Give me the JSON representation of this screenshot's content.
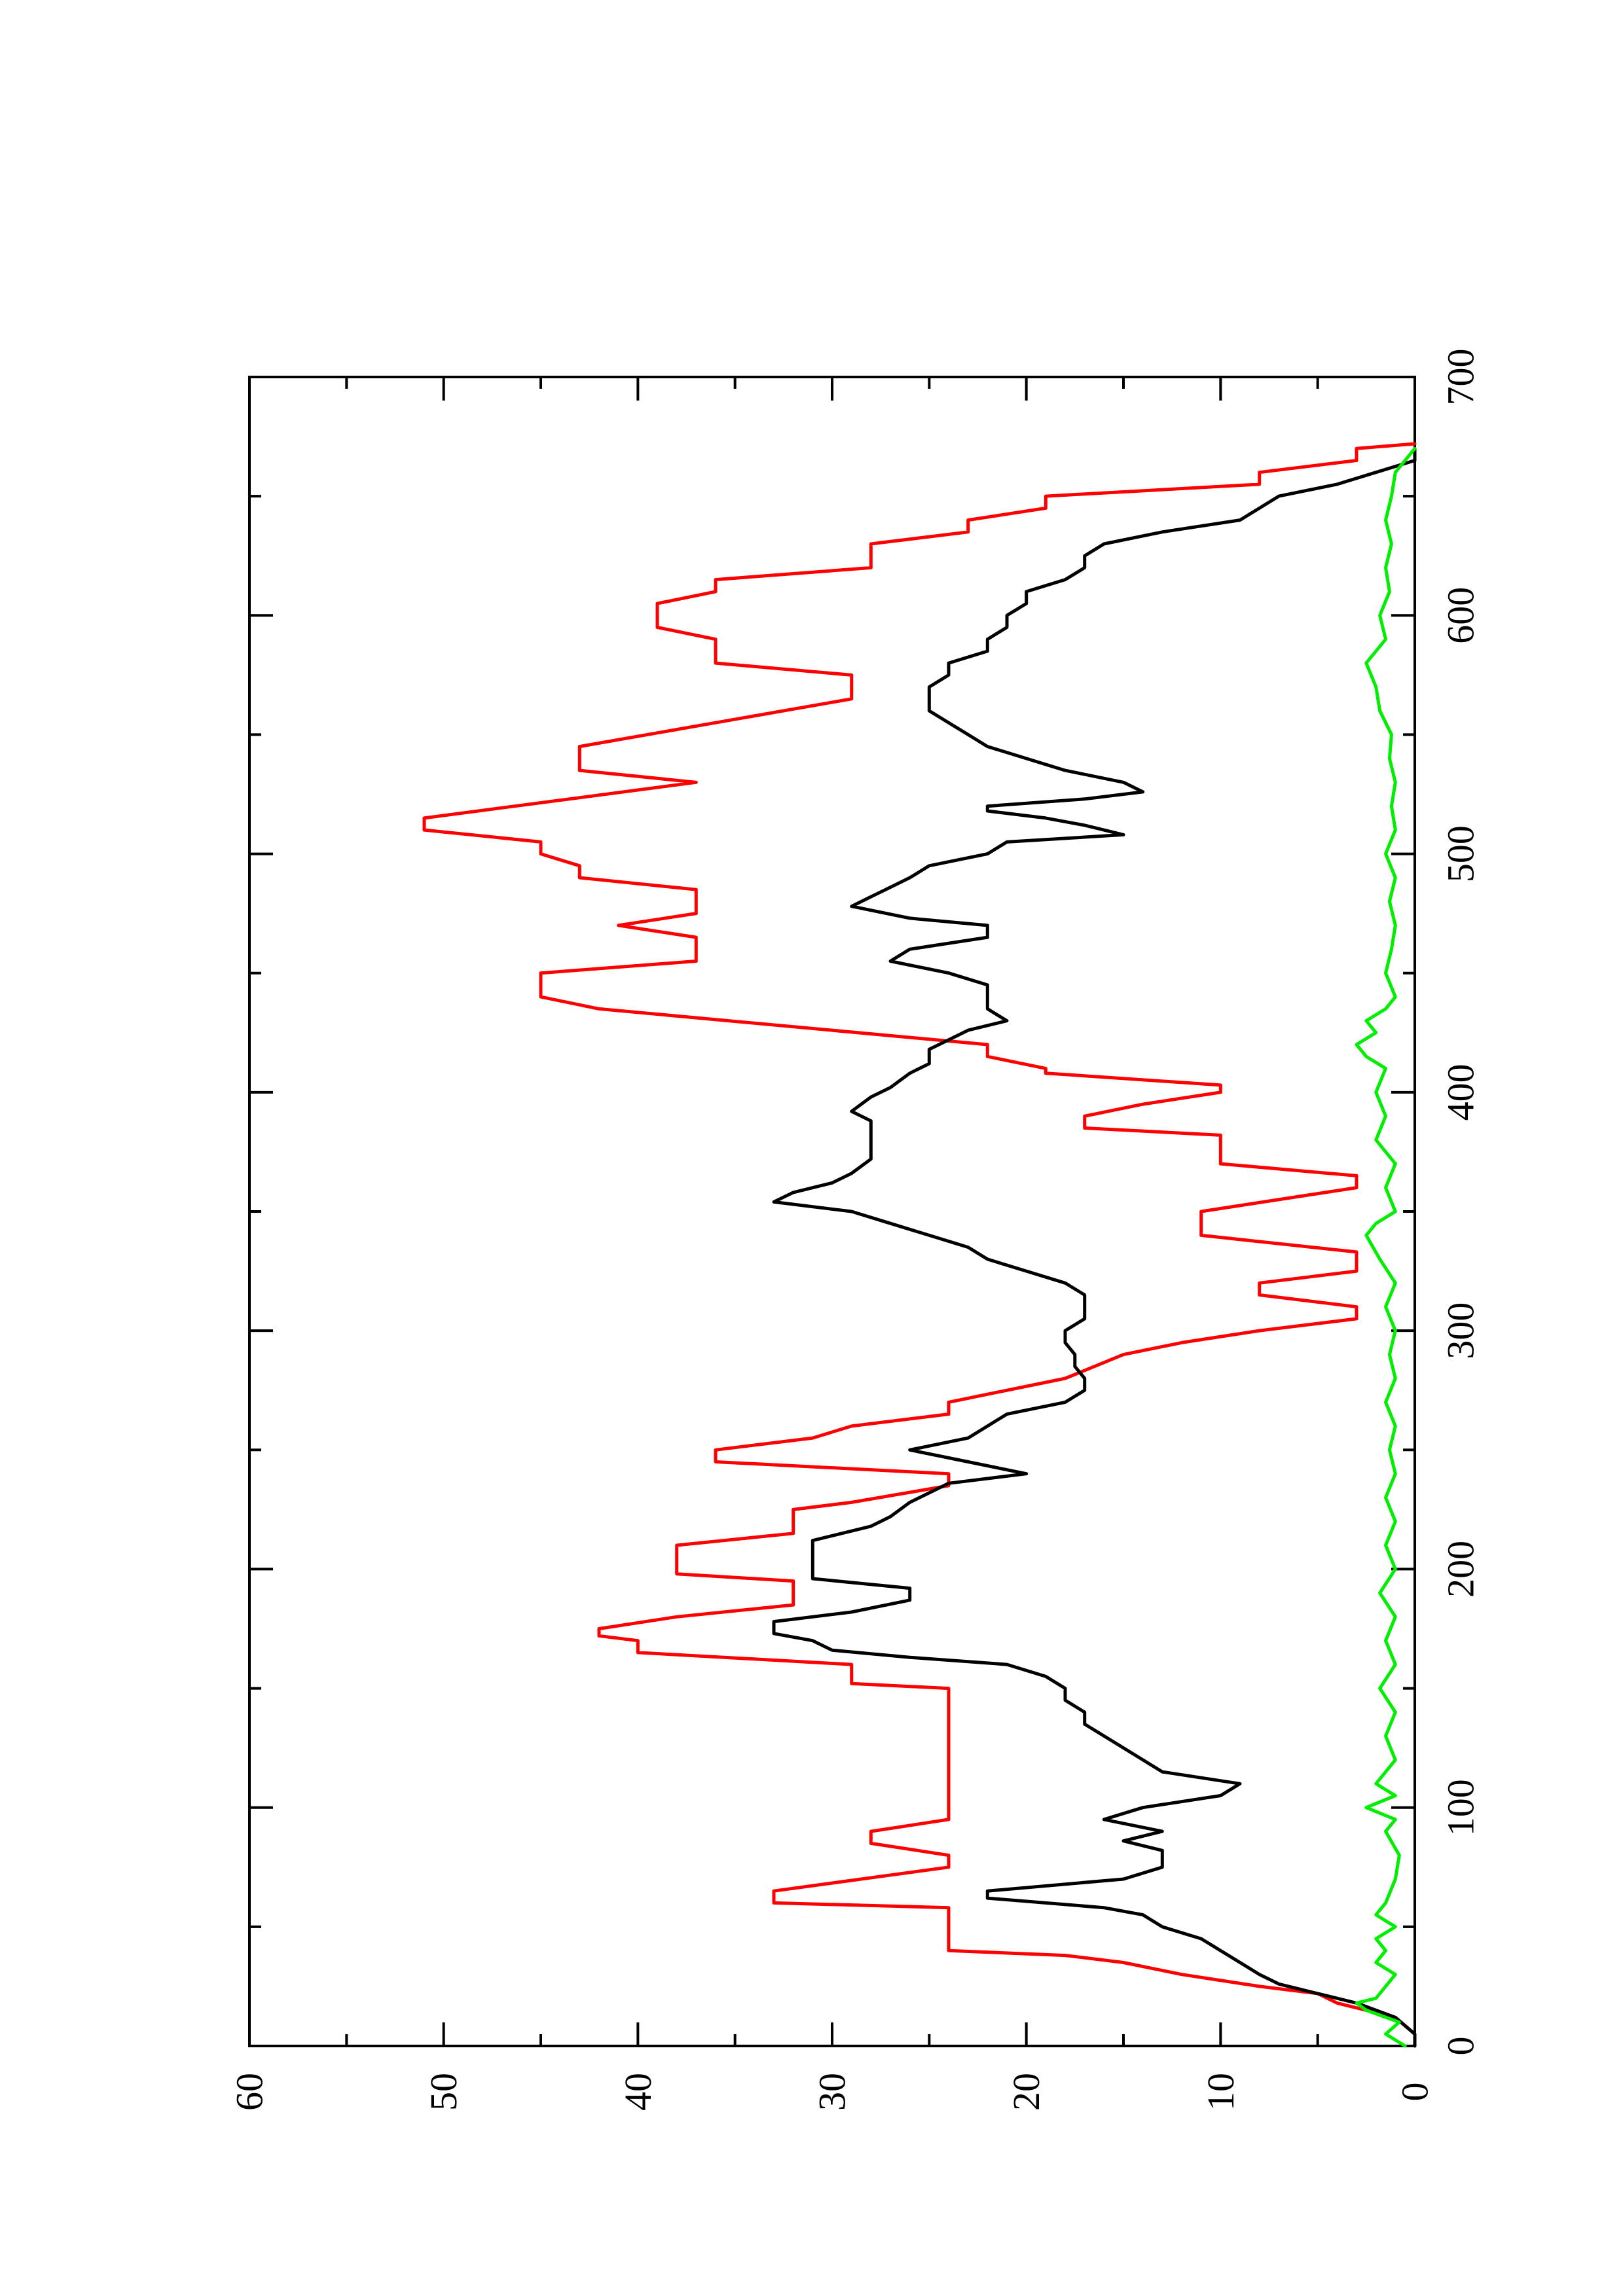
{
  "chart_data": {
    "type": "line",
    "orientation": "rotated-90-ccw",
    "title": "",
    "xlabel": "",
    "ylabel": "",
    "xlim": [
      0,
      700
    ],
    "ylim": [
      0,
      60
    ],
    "x_ticks": [
      0,
      100,
      200,
      300,
      400,
      500,
      600,
      700
    ],
    "x_minor_ticks": [
      50,
      150,
      250,
      350,
      450,
      550,
      650
    ],
    "y_ticks": [
      0,
      10,
      20,
      30,
      40,
      50,
      60
    ],
    "y_minor_ticks": [
      5,
      15,
      25,
      35,
      45,
      55
    ],
    "x_tick_labels": [
      "0",
      "100",
      "200",
      "300",
      "400",
      "500",
      "600",
      "700"
    ],
    "y_tick_labels": [
      "0",
      "10",
      "20",
      "30",
      "40",
      "50",
      "60"
    ],
    "grid": false,
    "legend": "none",
    "series": [
      {
        "color": "#ff0000",
        "points": [
          [
            0,
            0
          ],
          [
            5,
            0
          ],
          [
            12,
            1
          ],
          [
            18,
            4
          ],
          [
            22,
            5
          ],
          [
            25,
            8
          ],
          [
            30,
            12
          ],
          [
            35,
            15
          ],
          [
            38,
            18
          ],
          [
            40,
            24
          ],
          [
            58,
            24
          ],
          [
            60,
            33
          ],
          [
            65,
            33
          ],
          [
            75,
            24
          ],
          [
            80,
            24
          ],
          [
            85,
            28
          ],
          [
            90,
            28
          ],
          [
            95,
            24
          ],
          [
            150,
            24
          ],
          [
            152,
            29
          ],
          [
            160,
            29
          ],
          [
            165,
            40
          ],
          [
            170,
            40
          ],
          [
            172,
            42
          ],
          [
            175,
            42
          ],
          [
            180,
            38
          ],
          [
            185,
            32
          ],
          [
            195,
            32
          ],
          [
            198,
            38
          ],
          [
            210,
            38
          ],
          [
            215,
            32
          ],
          [
            225,
            32
          ],
          [
            228,
            29
          ],
          [
            235,
            24
          ],
          [
            240,
            24
          ],
          [
            245,
            36
          ],
          [
            250,
            36
          ],
          [
            255,
            31
          ],
          [
            260,
            29
          ],
          [
            265,
            24
          ],
          [
            270,
            24
          ],
          [
            280,
            18
          ],
          [
            290,
            15
          ],
          [
            295,
            12
          ],
          [
            300,
            8
          ],
          [
            305,
            3
          ],
          [
            310,
            3
          ],
          [
            315,
            8
          ],
          [
            320,
            8
          ],
          [
            325,
            3
          ],
          [
            333,
            3
          ],
          [
            340,
            11
          ],
          [
            350,
            11
          ],
          [
            360,
            3
          ],
          [
            365,
            3
          ],
          [
            370,
            10
          ],
          [
            382,
            10
          ],
          [
            385,
            17
          ],
          [
            390,
            17
          ],
          [
            395,
            14
          ],
          [
            400,
            10
          ],
          [
            403,
            10
          ],
          [
            408,
            19
          ],
          [
            410,
            19
          ],
          [
            415,
            22
          ],
          [
            420,
            22
          ],
          [
            435,
            42
          ],
          [
            440,
            45
          ],
          [
            450,
            45
          ],
          [
            455,
            37
          ],
          [
            465,
            37
          ],
          [
            470,
            41
          ],
          [
            475,
            37
          ],
          [
            485,
            37
          ],
          [
            490,
            43
          ],
          [
            495,
            43
          ],
          [
            500,
            45
          ],
          [
            505,
            45
          ],
          [
            510,
            51
          ],
          [
            515,
            51
          ],
          [
            530,
            37
          ],
          [
            535,
            43
          ],
          [
            545,
            43
          ],
          [
            555,
            36
          ],
          [
            565,
            29
          ],
          [
            575,
            29
          ],
          [
            580,
            36
          ],
          [
            590,
            36
          ],
          [
            595,
            39
          ],
          [
            605,
            39
          ],
          [
            610,
            36
          ],
          [
            615,
            36
          ],
          [
            620,
            28
          ],
          [
            630,
            28
          ],
          [
            635,
            23
          ],
          [
            640,
            23
          ],
          [
            645,
            19
          ],
          [
            650,
            19
          ],
          [
            655,
            8
          ],
          [
            660,
            8
          ],
          [
            665,
            3
          ],
          [
            670,
            3
          ],
          [
            672,
            0
          ]
        ]
      },
      {
        "color": "#000000",
        "points": [
          [
            0,
            0
          ],
          [
            5,
            0
          ],
          [
            12,
            1
          ],
          [
            18,
            3
          ],
          [
            22,
            5
          ],
          [
            26,
            7
          ],
          [
            30,
            8
          ],
          [
            35,
            9
          ],
          [
            40,
            10
          ],
          [
            45,
            11
          ],
          [
            50,
            13
          ],
          [
            55,
            14
          ],
          [
            58,
            16
          ],
          [
            62,
            22
          ],
          [
            65,
            22
          ],
          [
            70,
            15
          ],
          [
            75,
            13
          ],
          [
            82,
            13
          ],
          [
            86,
            15
          ],
          [
            90,
            13
          ],
          [
            95,
            16
          ],
          [
            100,
            14
          ],
          [
            105,
            10
          ],
          [
            110,
            9
          ],
          [
            115,
            13
          ],
          [
            120,
            14
          ],
          [
            125,
            15
          ],
          [
            130,
            16
          ],
          [
            135,
            17
          ],
          [
            140,
            17
          ],
          [
            145,
            18
          ],
          [
            150,
            18
          ],
          [
            155,
            19
          ],
          [
            160,
            21
          ],
          [
            163,
            26
          ],
          [
            166,
            30
          ],
          [
            170,
            31
          ],
          [
            173,
            33
          ],
          [
            178,
            33
          ],
          [
            182,
            29
          ],
          [
            187,
            26
          ],
          [
            192,
            26
          ],
          [
            196,
            31
          ],
          [
            205,
            31
          ],
          [
            212,
            31
          ],
          [
            218,
            28
          ],
          [
            222,
            27
          ],
          [
            228,
            26
          ],
          [
            232,
            25
          ],
          [
            236,
            24
          ],
          [
            240,
            20
          ],
          [
            245,
            23
          ],
          [
            250,
            26
          ],
          [
            255,
            23
          ],
          [
            260,
            22
          ],
          [
            265,
            21
          ],
          [
            270,
            18
          ],
          [
            275,
            17
          ],
          [
            280,
            17
          ],
          [
            285,
            17.5
          ],
          [
            290,
            17.5
          ],
          [
            295,
            18
          ],
          [
            300,
            18
          ],
          [
            305,
            17
          ],
          [
            310,
            17
          ],
          [
            315,
            17
          ],
          [
            320,
            18
          ],
          [
            325,
            20
          ],
          [
            330,
            22
          ],
          [
            335,
            23
          ],
          [
            340,
            25
          ],
          [
            345,
            27
          ],
          [
            350,
            29
          ],
          [
            354,
            33
          ],
          [
            358,
            32
          ],
          [
            362,
            30
          ],
          [
            366,
            29
          ],
          [
            372,
            28
          ],
          [
            378,
            28
          ],
          [
            382,
            28
          ],
          [
            388,
            28
          ],
          [
            392,
            29
          ],
          [
            398,
            28
          ],
          [
            402,
            27
          ],
          [
            408,
            26
          ],
          [
            412,
            25
          ],
          [
            418,
            25
          ],
          [
            422,
            24
          ],
          [
            426,
            23
          ],
          [
            430,
            21
          ],
          [
            435,
            22
          ],
          [
            440,
            22
          ],
          [
            445,
            22
          ],
          [
            450,
            24
          ],
          [
            455,
            27
          ],
          [
            460,
            26
          ],
          [
            465,
            22
          ],
          [
            470,
            22
          ],
          [
            473,
            26
          ],
          [
            478,
            29
          ],
          [
            482,
            28
          ],
          [
            486,
            27
          ],
          [
            490,
            26
          ],
          [
            495,
            25
          ],
          [
            500,
            22
          ],
          [
            505,
            21
          ],
          [
            508,
            15
          ],
          [
            512,
            17
          ],
          [
            515,
            19
          ],
          [
            518,
            22
          ],
          [
            520,
            22
          ],
          [
            523,
            17
          ],
          [
            526,
            14
          ],
          [
            530,
            15
          ],
          [
            535,
            18
          ],
          [
            540,
            20
          ],
          [
            545,
            22
          ],
          [
            550,
            23
          ],
          [
            555,
            24
          ],
          [
            560,
            25
          ],
          [
            565,
            25
          ],
          [
            570,
            25
          ],
          [
            575,
            24
          ],
          [
            580,
            24
          ],
          [
            585,
            22
          ],
          [
            590,
            22
          ],
          [
            595,
            21
          ],
          [
            600,
            21
          ],
          [
            605,
            20
          ],
          [
            610,
            20
          ],
          [
            615,
            18
          ],
          [
            620,
            17
          ],
          [
            625,
            17
          ],
          [
            630,
            16
          ],
          [
            635,
            13
          ],
          [
            640,
            9
          ],
          [
            645,
            8
          ],
          [
            650,
            7
          ],
          [
            655,
            4
          ],
          [
            660,
            2
          ],
          [
            665,
            0
          ],
          [
            670,
            0
          ]
        ]
      },
      {
        "color": "#00ee00",
        "points": [
          [
            0,
            0.5
          ],
          [
            5,
            1.5
          ],
          [
            10,
            0.8
          ],
          [
            15,
            2.5
          ],
          [
            18,
            3
          ],
          [
            20,
            2
          ],
          [
            25,
            1.5
          ],
          [
            30,
            1
          ],
          [
            35,
            2
          ],
          [
            40,
            1.5
          ],
          [
            45,
            2
          ],
          [
            50,
            1
          ],
          [
            55,
            2
          ],
          [
            60,
            1.5
          ],
          [
            70,
            1
          ],
          [
            80,
            0.8
          ],
          [
            90,
            1.5
          ],
          [
            95,
            1
          ],
          [
            100,
            2.5
          ],
          [
            105,
            1
          ],
          [
            110,
            2
          ],
          [
            120,
            1
          ],
          [
            130,
            1.5
          ],
          [
            140,
            1
          ],
          [
            150,
            1.8
          ],
          [
            160,
            1
          ],
          [
            170,
            1.5
          ],
          [
            180,
            1
          ],
          [
            190,
            1.8
          ],
          [
            200,
            1
          ],
          [
            210,
            1.5
          ],
          [
            220,
            1
          ],
          [
            230,
            1.5
          ],
          [
            240,
            1
          ],
          [
            250,
            1.3
          ],
          [
            260,
            1
          ],
          [
            270,
            1.5
          ],
          [
            280,
            1
          ],
          [
            290,
            1.3
          ],
          [
            300,
            1
          ],
          [
            310,
            1.5
          ],
          [
            320,
            1
          ],
          [
            330,
            1.8
          ],
          [
            340,
            2.5
          ],
          [
            345,
            2
          ],
          [
            350,
            1
          ],
          [
            360,
            1.5
          ],
          [
            370,
            1
          ],
          [
            380,
            2
          ],
          [
            390,
            1.5
          ],
          [
            400,
            2
          ],
          [
            410,
            1.5
          ],
          [
            415,
            2.5
          ],
          [
            420,
            3
          ],
          [
            425,
            2
          ],
          [
            430,
            2.5
          ],
          [
            435,
            1.5
          ],
          [
            440,
            1
          ],
          [
            450,
            1.5
          ],
          [
            460,
            1.2
          ],
          [
            470,
            1
          ],
          [
            480,
            1.3
          ],
          [
            490,
            1
          ],
          [
            500,
            1.5
          ],
          [
            510,
            1
          ],
          [
            520,
            1.2
          ],
          [
            530,
            1
          ],
          [
            540,
            1.3
          ],
          [
            550,
            1.2
          ],
          [
            560,
            1.8
          ],
          [
            570,
            2
          ],
          [
            580,
            2.5
          ],
          [
            590,
            1.5
          ],
          [
            600,
            1.8
          ],
          [
            610,
            1.3
          ],
          [
            620,
            1.5
          ],
          [
            630,
            1.2
          ],
          [
            640,
            1.5
          ],
          [
            650,
            1.2
          ],
          [
            660,
            1
          ],
          [
            670,
            0
          ]
        ]
      }
    ]
  }
}
